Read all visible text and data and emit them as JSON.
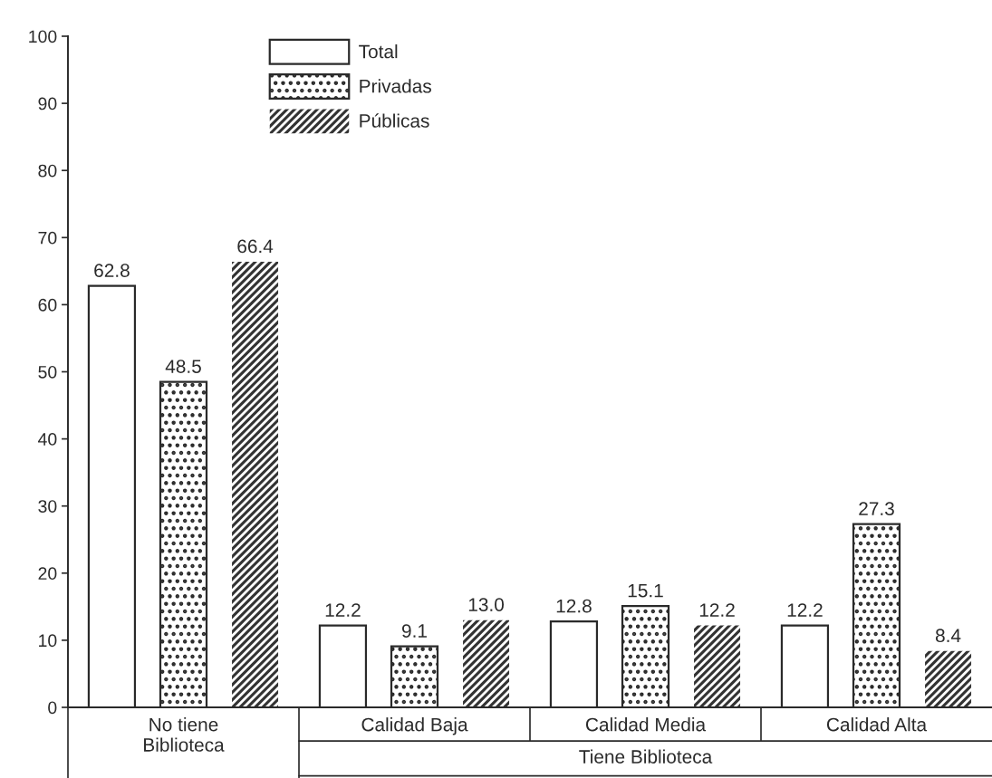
{
  "chart_data": {
    "type": "bar",
    "categories": [
      "No tiene\nBiblioteca",
      "Calidad Baja",
      "Calidad Media",
      "Calidad Alta"
    ],
    "series": [
      {
        "name": "Total",
        "color": "#ffffff",
        "values": [
          62.8,
          12.2,
          12.8,
          12.2
        ],
        "value_labels": [
          "62.8",
          "12.2",
          "12.8",
          "12.2"
        ]
      },
      {
        "name": "Privadas",
        "color": "#2a2a2a",
        "values": [
          48.5,
          9.1,
          15.1,
          27.3
        ],
        "value_labels": [
          "48.5",
          "9.1",
          "15.1",
          "27.3"
        ]
      },
      {
        "name": "Públicas",
        "color": "#333333",
        "values": [
          66.4,
          13.0,
          12.2,
          8.4
        ],
        "value_labels": [
          "66.4",
          "13.0",
          "12.2",
          "8.4"
        ]
      }
    ],
    "annotations": [
      "Tiene Biblioteca"
    ],
    "ylim": [
      0,
      100
    ],
    "yticks": [
      0,
      10,
      20,
      30,
      40,
      50,
      60,
      70,
      80,
      90,
      100
    ],
    "legend": "top left",
    "grid": false
  }
}
